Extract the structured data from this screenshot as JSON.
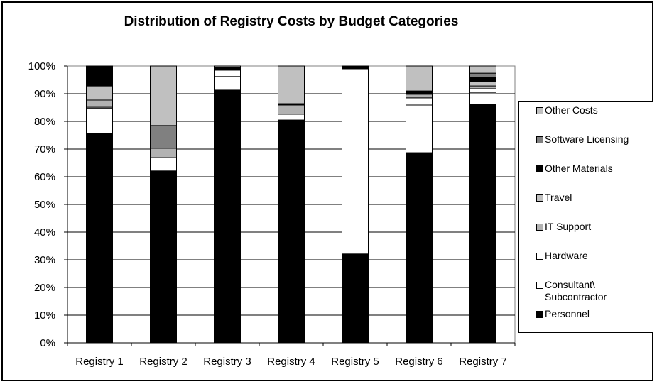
{
  "chart_data": {
    "type": "bar",
    "stacked": true,
    "normalized": true,
    "title": "Distribution of Registry Costs by Budget Categories",
    "xlabel": "",
    "ylabel": "",
    "ylim": [
      0,
      100
    ],
    "yticks": [
      "0%",
      "10%",
      "20%",
      "30%",
      "40%",
      "50%",
      "60%",
      "70%",
      "80%",
      "90%",
      "100%"
    ],
    "grid": true,
    "legend_position": "right",
    "categories": [
      "Registry 1",
      "Registry 2",
      "Registry 3",
      "Registry 4",
      "Registry 5",
      "Registry 6",
      "Registry 7"
    ],
    "series": [
      {
        "name": "Personnel",
        "color": "#000000",
        "values": [
          75.6,
          62.1,
          91.3,
          80.5,
          32.1,
          68.7,
          86.2
        ]
      },
      {
        "name": "Consultant\\\nSubcontractor",
        "color": "#ffffff",
        "values": [
          9.1,
          4.8,
          4.9,
          2.1,
          66.9,
          17.2,
          4.1
        ]
      },
      {
        "name": "Hardware",
        "color": "#ffffff",
        "values": [
          0.4,
          0,
          2.3,
          0,
          0,
          2.6,
          1.5
        ]
      },
      {
        "name": "IT Support",
        "color": "#b2b2b2",
        "values": [
          2.6,
          3.4,
          0,
          3.3,
          0,
          1.3,
          1.0
        ]
      },
      {
        "name": "Travel",
        "color": "#c0c0c0",
        "values": [
          5.1,
          0,
          0,
          0,
          0,
          0,
          1.6
        ]
      },
      {
        "name": "Other Materials",
        "color": "#000000",
        "values": [
          7.2,
          0,
          1.0,
          0.5,
          1.0,
          1.2,
          1.5
        ]
      },
      {
        "name": "Software Licensing",
        "color": "#808080",
        "values": [
          0,
          8.2,
          0,
          0,
          0,
          0,
          1.5
        ]
      },
      {
        "name": "Other Costs",
        "color": "#c0c0c0",
        "values": [
          0,
          21.5,
          0.5,
          13.6,
          0,
          9.0,
          2.6
        ]
      }
    ]
  },
  "legend": {
    "items": [
      {
        "label": "Other Costs",
        "color": "#c0c0c0"
      },
      {
        "label": "Software Licensing",
        "color": "#808080"
      },
      {
        "label": "Other Materials",
        "color": "#000000"
      },
      {
        "label": "Travel",
        "color": "#c0c0c0"
      },
      {
        "label": "IT Support",
        "color": "#b2b2b2"
      },
      {
        "label": "Hardware",
        "color": "#ffffff"
      },
      {
        "label": "Consultant\\\nSubcontractor",
        "color": "#ffffff"
      },
      {
        "label": "Personnel",
        "color": "#000000"
      }
    ]
  }
}
